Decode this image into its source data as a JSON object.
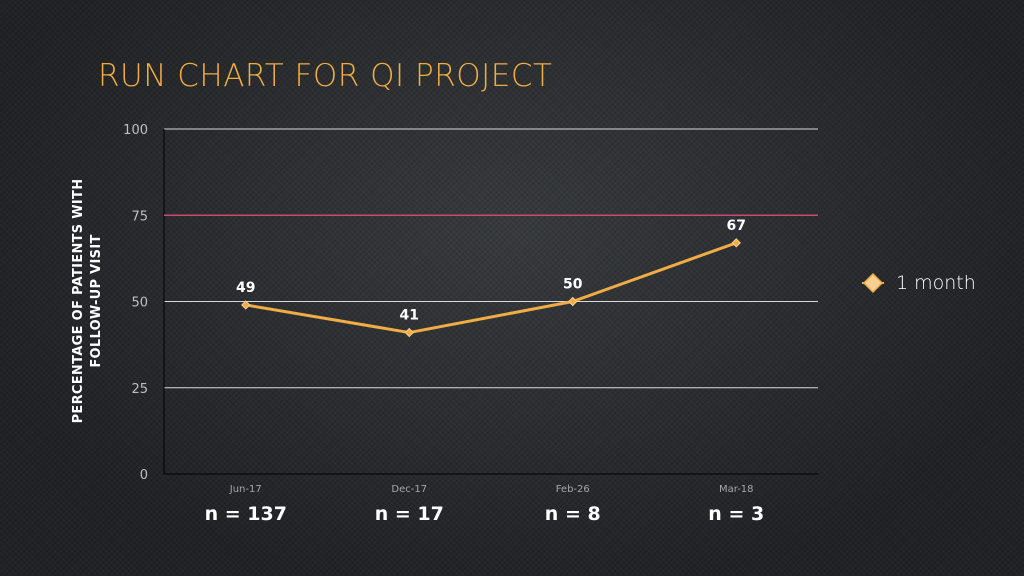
{
  "title": "RUN CHART FOR QI PROJECT",
  "chart_data": {
    "type": "line",
    "categories": [
      "Jun-17",
      "Dec-17",
      "Feb-26",
      "Mar-18"
    ],
    "sample_sizes": [
      "n = 137",
      "n = 17",
      "n = 8",
      "n = 3"
    ],
    "series": [
      {
        "name": "1 month",
        "values": [
          49,
          41,
          50,
          67
        ],
        "data_labels": [
          "49",
          "41",
          "50",
          "67"
        ],
        "color": "#f0ad45"
      }
    ],
    "target_line": {
      "value": 75,
      "color": "#c94a6a"
    },
    "ylabel_lines": [
      "PERCENTAGE OF PATIENTS WITH",
      "FOLLOW-UP VISIT"
    ],
    "xlabel": "",
    "ylim": [
      0,
      100
    ],
    "yticks": [
      "0",
      "25",
      "50",
      "75",
      "100"
    ],
    "grid": true,
    "legend_position": "right"
  }
}
